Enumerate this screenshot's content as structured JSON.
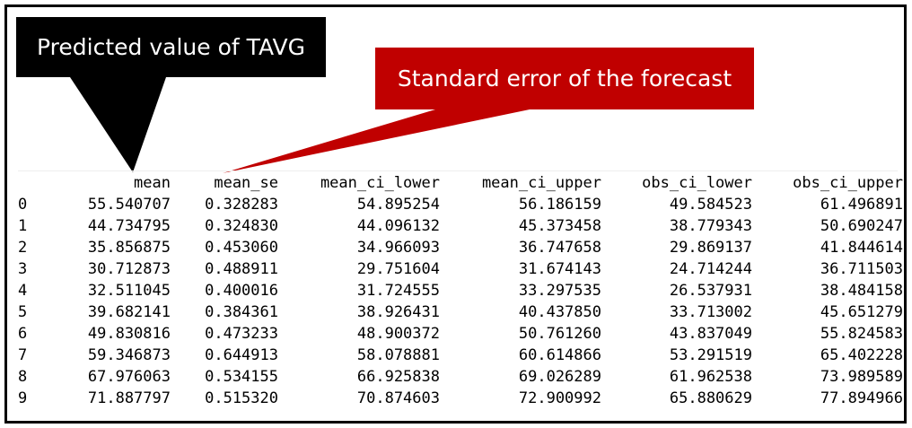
{
  "callouts": {
    "predicted": "Predicted value of TAVG",
    "std_error": "Standard error of the forecast"
  },
  "colors": {
    "callout_black": "#000000",
    "callout_red": "#c00000",
    "frame": "#000000"
  },
  "table": {
    "columns": [
      "mean",
      "mean_se",
      "mean_ci_lower",
      "mean_ci_upper",
      "obs_ci_lower",
      "obs_ci_upper"
    ],
    "rows": [
      {
        "index": "0",
        "mean": "55.540707",
        "mean_se": "0.328283",
        "mean_ci_lower": "54.895254",
        "mean_ci_upper": "56.186159",
        "obs_ci_lower": "49.584523",
        "obs_ci_upper": "61.496891"
      },
      {
        "index": "1",
        "mean": "44.734795",
        "mean_se": "0.324830",
        "mean_ci_lower": "44.096132",
        "mean_ci_upper": "45.373458",
        "obs_ci_lower": "38.779343",
        "obs_ci_upper": "50.690247"
      },
      {
        "index": "2",
        "mean": "35.856875",
        "mean_se": "0.453060",
        "mean_ci_lower": "34.966093",
        "mean_ci_upper": "36.747658",
        "obs_ci_lower": "29.869137",
        "obs_ci_upper": "41.844614"
      },
      {
        "index": "3",
        "mean": "30.712873",
        "mean_se": "0.488911",
        "mean_ci_lower": "29.751604",
        "mean_ci_upper": "31.674143",
        "obs_ci_lower": "24.714244",
        "obs_ci_upper": "36.711503"
      },
      {
        "index": "4",
        "mean": "32.511045",
        "mean_se": "0.400016",
        "mean_ci_lower": "31.724555",
        "mean_ci_upper": "33.297535",
        "obs_ci_lower": "26.537931",
        "obs_ci_upper": "38.484158"
      },
      {
        "index": "5",
        "mean": "39.682141",
        "mean_se": "0.384361",
        "mean_ci_lower": "38.926431",
        "mean_ci_upper": "40.437850",
        "obs_ci_lower": "33.713002",
        "obs_ci_upper": "45.651279"
      },
      {
        "index": "6",
        "mean": "49.830816",
        "mean_se": "0.473233",
        "mean_ci_lower": "48.900372",
        "mean_ci_upper": "50.761260",
        "obs_ci_lower": "43.837049",
        "obs_ci_upper": "55.824583"
      },
      {
        "index": "7",
        "mean": "59.346873",
        "mean_se": "0.644913",
        "mean_ci_lower": "58.078881",
        "mean_ci_upper": "60.614866",
        "obs_ci_lower": "53.291519",
        "obs_ci_upper": "65.402228"
      },
      {
        "index": "8",
        "mean": "67.976063",
        "mean_se": "0.534155",
        "mean_ci_lower": "66.925838",
        "mean_ci_upper": "69.026289",
        "obs_ci_lower": "61.962538",
        "obs_ci_upper": "73.989589"
      },
      {
        "index": "9",
        "mean": "71.887797",
        "mean_se": "0.515320",
        "mean_ci_lower": "70.874603",
        "mean_ci_upper": "72.900992",
        "obs_ci_lower": "65.880629",
        "obs_ci_upper": "77.894966"
      }
    ]
  }
}
